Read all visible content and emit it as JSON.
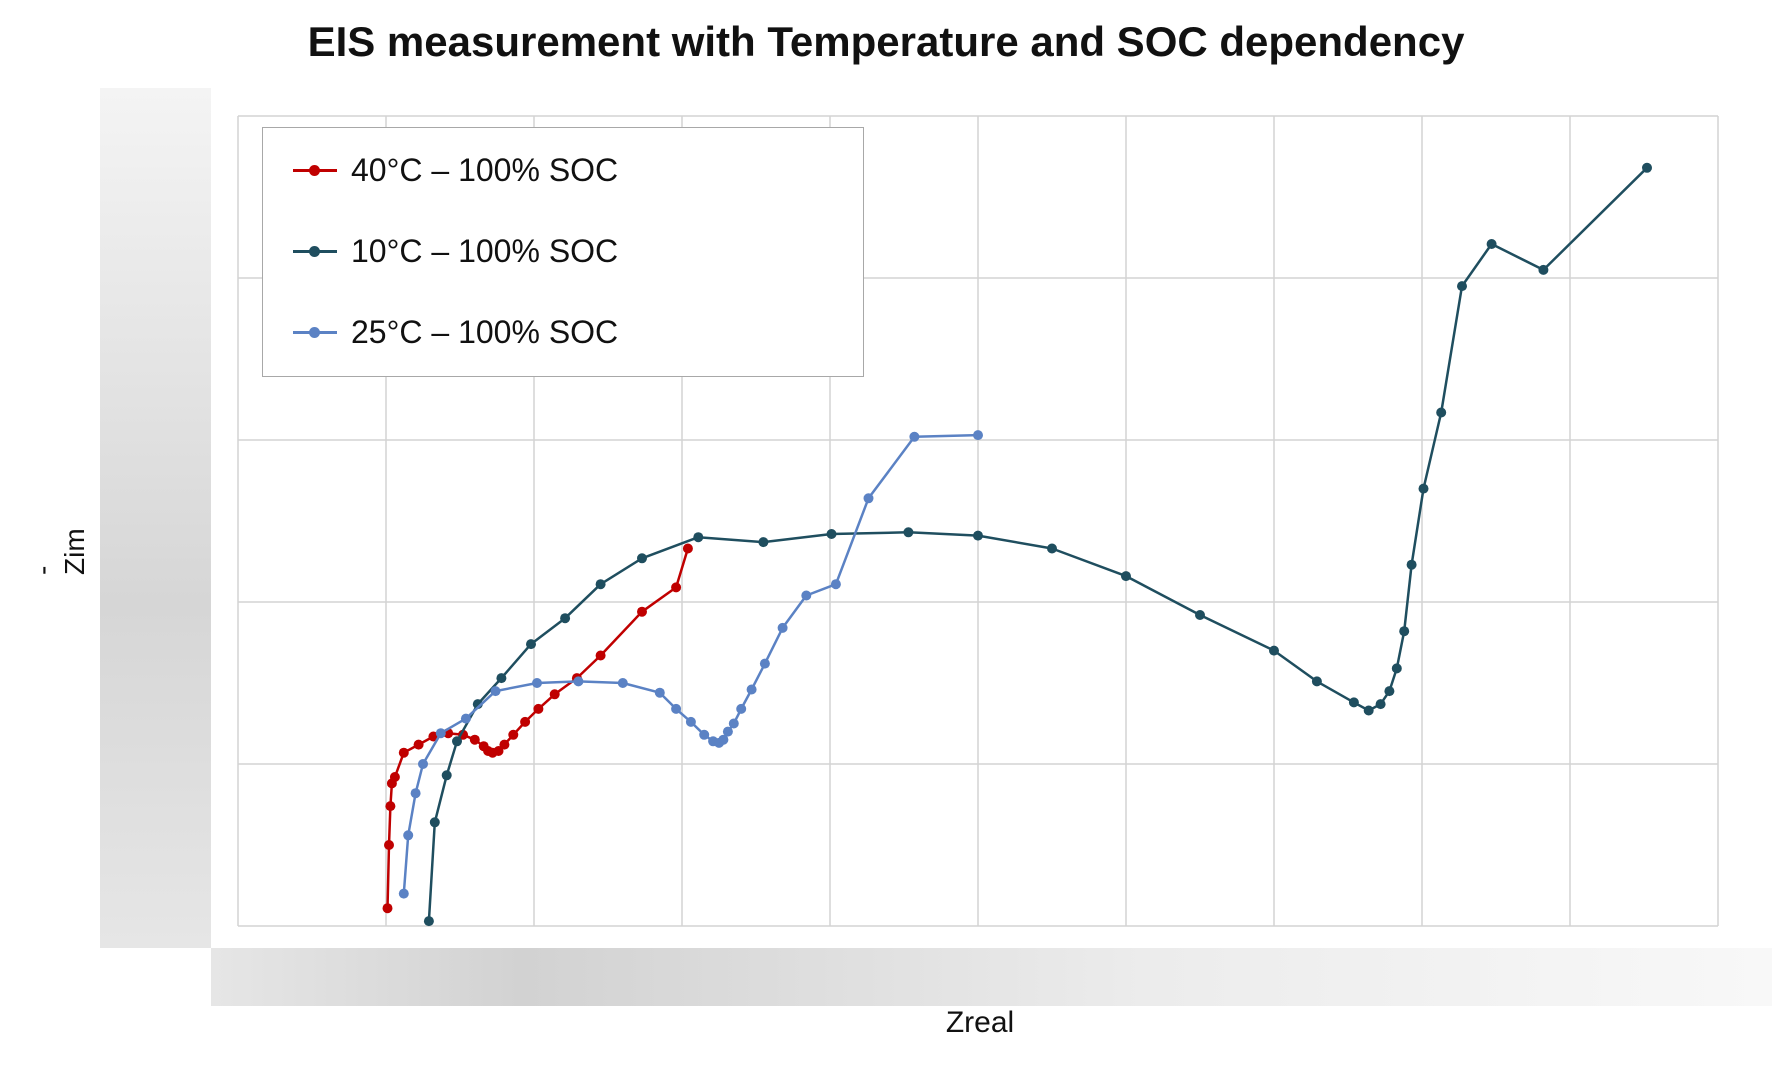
{
  "chart_data": {
    "type": "line",
    "title": "EIS measurement with Temperature and SOC dependency",
    "xlabel": "Zreal",
    "ylabel": "-Zim",
    "xlim": [
      0,
      10
    ],
    "ylim": [
      0,
      5
    ],
    "grid": true,
    "legend_position": "top-left",
    "series": [
      {
        "name": "40°C – 100% SOC",
        "color": "#c00000",
        "x": [
          1.01,
          1.02,
          1.03,
          1.04,
          1.06,
          1.12,
          1.22,
          1.32,
          1.42,
          1.52,
          1.6,
          1.66,
          1.69,
          1.72,
          1.76,
          1.8,
          1.86,
          1.94,
          2.03,
          2.14,
          2.29,
          2.45,
          2.73,
          2.96,
          3.04
        ],
        "y": [
          0.11,
          0.5,
          0.74,
          0.88,
          0.92,
          1.07,
          1.12,
          1.17,
          1.19,
          1.18,
          1.15,
          1.11,
          1.08,
          1.07,
          1.08,
          1.12,
          1.18,
          1.26,
          1.34,
          1.43,
          1.53,
          1.67,
          1.94,
          2.09,
          2.33
        ]
      },
      {
        "name": "10°C – 100% SOC",
        "color": "#1f4e5f",
        "x": [
          1.29,
          1.33,
          1.41,
          1.48,
          1.62,
          1.78,
          1.98,
          2.21,
          2.45,
          2.73,
          3.11,
          3.55,
          4.01,
          4.53,
          5.0,
          5.5,
          6.0,
          6.5,
          7.0,
          7.29,
          7.54,
          7.64,
          7.72,
          7.78,
          7.83,
          7.88,
          7.93,
          8.01,
          8.13,
          8.27,
          8.47,
          8.82,
          9.52
        ],
        "y": [
          0.03,
          0.64,
          0.93,
          1.14,
          1.37,
          1.53,
          1.74,
          1.9,
          2.11,
          2.27,
          2.4,
          2.37,
          2.42,
          2.43,
          2.41,
          2.33,
          2.16,
          1.92,
          1.7,
          1.51,
          1.38,
          1.33,
          1.37,
          1.45,
          1.59,
          1.82,
          2.23,
          2.7,
          3.17,
          3.95,
          4.21,
          4.05,
          4.68
        ]
      },
      {
        "name": "25°C – 100% SOC",
        "color": "#5b82c4",
        "x": [
          1.12,
          1.15,
          1.2,
          1.25,
          1.37,
          1.54,
          1.74,
          2.02,
          2.3,
          2.6,
          2.85,
          2.96,
          3.06,
          3.15,
          3.21,
          3.25,
          3.28,
          3.31,
          3.35,
          3.4,
          3.47,
          3.56,
          3.68,
          3.84,
          4.04,
          4.26,
          4.57,
          5.0
        ],
        "y": [
          0.2,
          0.56,
          0.82,
          1.0,
          1.19,
          1.28,
          1.45,
          1.5,
          1.51,
          1.5,
          1.44,
          1.34,
          1.26,
          1.18,
          1.14,
          1.13,
          1.15,
          1.2,
          1.25,
          1.34,
          1.46,
          1.62,
          1.84,
          2.04,
          2.11,
          2.64,
          3.02,
          3.03
        ]
      }
    ]
  }
}
